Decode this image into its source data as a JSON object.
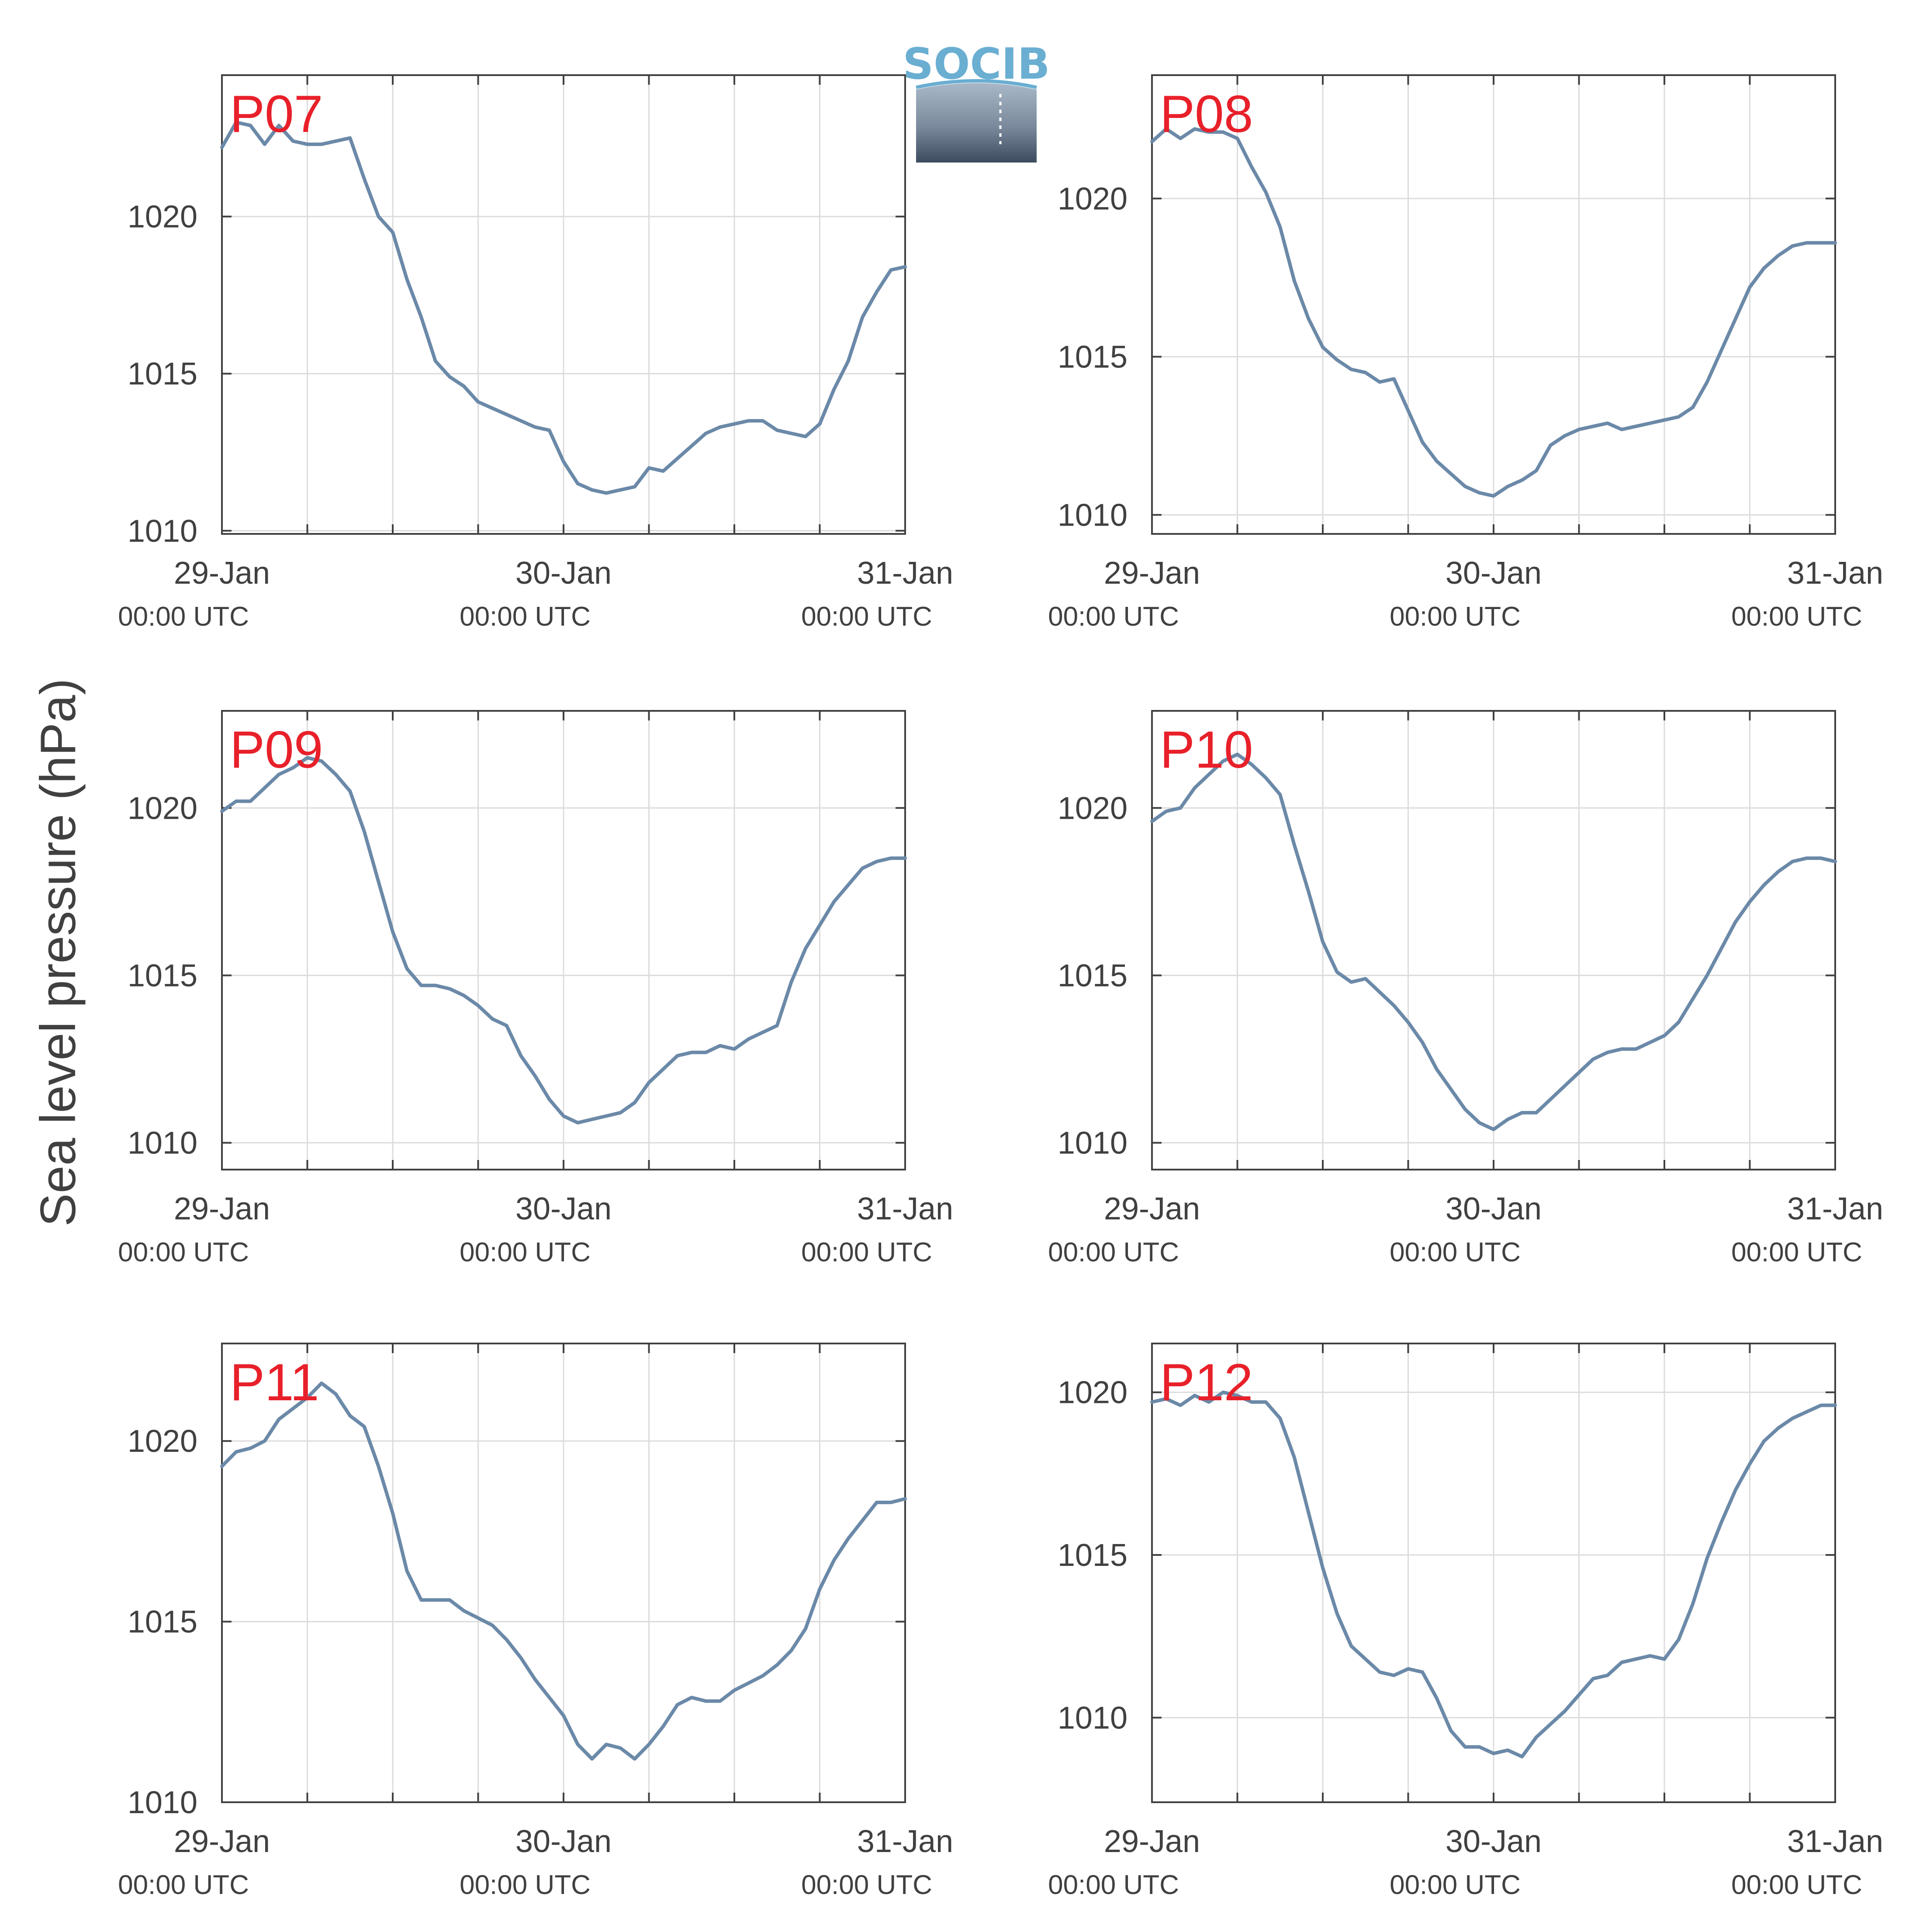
{
  "figure": {
    "ylabel": "Sea level pressure (hPa)",
    "logo_text": "SOCIB",
    "colors": {
      "line": "#6b89a8",
      "station_label": "#e8202a",
      "grid": "#dcdcdc",
      "axis": "#404040",
      "text": "#404040"
    }
  },
  "chart_data": [
    {
      "type": "line",
      "name": "P07",
      "xlabel": "",
      "ylabel": "Sea level pressure (hPa)",
      "x_ticks": [
        {
          "label": "29-Jan",
          "sub": "00:00 UTC",
          "hours": 0
        },
        {
          "label": "30-Jan",
          "sub": "00:00 UTC",
          "hours": 24
        },
        {
          "label": "31-Jan",
          "sub": "00:00 UTC",
          "hours": 48
        }
      ],
      "x_minor_ticks_hours": [
        6,
        12,
        18,
        30,
        36,
        42
      ],
      "xlim_hours": [
        0,
        48
      ],
      "ylim": [
        1009.9,
        1024.5
      ],
      "yticks": [
        1010,
        1015,
        1020
      ],
      "grid": true,
      "x_hours": [
        0,
        1,
        2,
        3,
        4,
        5,
        6,
        7,
        8,
        9,
        10,
        11,
        12,
        13,
        14,
        15,
        16,
        17,
        18,
        19,
        20,
        21,
        22,
        23,
        24,
        25,
        26,
        27,
        28,
        29,
        30,
        31,
        32,
        33,
        34,
        35,
        36,
        37,
        38,
        39,
        40,
        41,
        42,
        43,
        44,
        45,
        46,
        47,
        48
      ],
      "values": [
        1022.2,
        1023.0,
        1022.9,
        1022.3,
        1022.9,
        1022.4,
        1022.3,
        1022.3,
        1022.4,
        1022.5,
        1021.2,
        1020.0,
        1019.5,
        1018.0,
        1016.8,
        1015.4,
        1014.9,
        1014.6,
        1014.1,
        1013.9,
        1013.7,
        1013.5,
        1013.3,
        1013.2,
        1012.2,
        1011.5,
        1011.3,
        1011.2,
        1011.3,
        1011.4,
        1012.0,
        1011.9,
        1012.3,
        1012.7,
        1013.1,
        1013.3,
        1013.4,
        1013.5,
        1013.5,
        1013.2,
        1013.1,
        1013.0,
        1013.4,
        1014.5,
        1015.4,
        1016.8,
        1017.6,
        1018.3,
        1018.4
      ]
    },
    {
      "type": "line",
      "name": "P08",
      "xlabel": "",
      "ylabel": "Sea level pressure (hPa)",
      "x_ticks": [
        {
          "label": "29-Jan",
          "sub": "00:00 UTC",
          "hours": 0
        },
        {
          "label": "30-Jan",
          "sub": "00:00 UTC",
          "hours": 24
        },
        {
          "label": "31-Jan",
          "sub": "00:00 UTC",
          "hours": 48
        }
      ],
      "x_minor_ticks_hours": [
        6,
        12,
        18,
        30,
        36,
        42
      ],
      "xlim_hours": [
        0,
        48
      ],
      "ylim": [
        1009.4,
        1023.9
      ],
      "yticks": [
        1010,
        1015,
        1020
      ],
      "grid": true,
      "x_hours": [
        0,
        1,
        2,
        3,
        4,
        5,
        6,
        7,
        8,
        9,
        10,
        11,
        12,
        13,
        14,
        15,
        16,
        17,
        18,
        19,
        20,
        21,
        22,
        23,
        24,
        25,
        26,
        27,
        28,
        29,
        30,
        31,
        32,
        33,
        34,
        35,
        36,
        37,
        38,
        39,
        40,
        41,
        42,
        43,
        44,
        45,
        46,
        47,
        48
      ],
      "values": [
        1021.8,
        1022.2,
        1021.9,
        1022.2,
        1022.1,
        1022.1,
        1021.9,
        1021.0,
        1020.2,
        1019.1,
        1017.4,
        1016.2,
        1015.3,
        1014.9,
        1014.6,
        1014.5,
        1014.2,
        1014.3,
        1013.3,
        1012.3,
        1011.7,
        1011.3,
        1010.9,
        1010.7,
        1010.6,
        1010.9,
        1011.1,
        1011.4,
        1012.2,
        1012.5,
        1012.7,
        1012.8,
        1012.9,
        1012.7,
        1012.8,
        1012.9,
        1013.0,
        1013.1,
        1013.4,
        1014.2,
        1015.2,
        1016.2,
        1017.2,
        1017.8,
        1018.2,
        1018.5,
        1018.6,
        1018.6,
        1018.6
      ]
    },
    {
      "type": "line",
      "name": "P09",
      "xlabel": "",
      "ylabel": "Sea level pressure (hPa)",
      "x_ticks": [
        {
          "label": "29-Jan",
          "sub": "00:00 UTC",
          "hours": 0
        },
        {
          "label": "30-Jan",
          "sub": "00:00 UTC",
          "hours": 24
        },
        {
          "label": "31-Jan",
          "sub": "00:00 UTC",
          "hours": 48
        }
      ],
      "x_minor_ticks_hours": [
        6,
        12,
        18,
        30,
        36,
        42
      ],
      "xlim_hours": [
        0,
        48
      ],
      "ylim": [
        1009.2,
        1022.9
      ],
      "yticks": [
        1010,
        1015,
        1020
      ],
      "grid": true,
      "x_hours": [
        0,
        1,
        2,
        3,
        4,
        5,
        6,
        7,
        8,
        9,
        10,
        11,
        12,
        13,
        14,
        15,
        16,
        17,
        18,
        19,
        20,
        21,
        22,
        23,
        24,
        25,
        26,
        27,
        28,
        29,
        30,
        31,
        32,
        33,
        34,
        35,
        36,
        37,
        38,
        39,
        40,
        41,
        42,
        43,
        44,
        45,
        46,
        47,
        48
      ],
      "values": [
        1019.9,
        1020.2,
        1020.2,
        1020.6,
        1021.0,
        1021.2,
        1021.5,
        1021.4,
        1021.0,
        1020.5,
        1019.3,
        1017.8,
        1016.3,
        1015.2,
        1014.7,
        1014.7,
        1014.6,
        1014.4,
        1014.1,
        1013.7,
        1013.5,
        1012.6,
        1012.0,
        1011.3,
        1010.8,
        1010.6,
        1010.7,
        1010.8,
        1010.9,
        1011.2,
        1011.8,
        1012.2,
        1012.6,
        1012.7,
        1012.7,
        1012.9,
        1012.8,
        1013.1,
        1013.3,
        1013.5,
        1014.8,
        1015.8,
        1016.5,
        1017.2,
        1017.7,
        1018.2,
        1018.4,
        1018.5,
        1018.5
      ]
    },
    {
      "type": "line",
      "name": "P10",
      "xlabel": "",
      "ylabel": "Sea level pressure (hPa)",
      "x_ticks": [
        {
          "label": "29-Jan",
          "sub": "00:00 UTC",
          "hours": 0
        },
        {
          "label": "30-Jan",
          "sub": "00:00 UTC",
          "hours": 24
        },
        {
          "label": "31-Jan",
          "sub": "00:00 UTC",
          "hours": 48
        }
      ],
      "x_minor_ticks_hours": [
        6,
        12,
        18,
        30,
        36,
        42
      ],
      "xlim_hours": [
        0,
        48
      ],
      "ylim": [
        1009.2,
        1022.9
      ],
      "yticks": [
        1010,
        1015,
        1020
      ],
      "grid": true,
      "x_hours": [
        0,
        1,
        2,
        3,
        4,
        5,
        6,
        7,
        8,
        9,
        10,
        11,
        12,
        13,
        14,
        15,
        16,
        17,
        18,
        19,
        20,
        21,
        22,
        23,
        24,
        25,
        26,
        27,
        28,
        29,
        30,
        31,
        32,
        33,
        34,
        35,
        36,
        37,
        38,
        39,
        40,
        41,
        42,
        43,
        44,
        45,
        46,
        47,
        48
      ],
      "values": [
        1019.6,
        1019.9,
        1020.0,
        1020.6,
        1021.0,
        1021.4,
        1021.6,
        1021.3,
        1020.9,
        1020.4,
        1018.9,
        1017.5,
        1016.0,
        1015.1,
        1014.8,
        1014.9,
        1014.5,
        1014.1,
        1013.6,
        1013.0,
        1012.2,
        1011.6,
        1011.0,
        1010.6,
        1010.4,
        1010.7,
        1010.9,
        1010.9,
        1011.3,
        1011.7,
        1012.1,
        1012.5,
        1012.7,
        1012.8,
        1012.8,
        1013.0,
        1013.2,
        1013.6,
        1014.3,
        1015.0,
        1015.8,
        1016.6,
        1017.2,
        1017.7,
        1018.1,
        1018.4,
        1018.5,
        1018.5,
        1018.4
      ]
    },
    {
      "type": "line",
      "name": "P11",
      "xlabel": "",
      "ylabel": "Sea level pressure (hPa)",
      "x_ticks": [
        {
          "label": "29-Jan",
          "sub": "00:00 UTC",
          "hours": 0
        },
        {
          "label": "30-Jan",
          "sub": "00:00 UTC",
          "hours": 24
        },
        {
          "label": "31-Jan",
          "sub": "00:00 UTC",
          "hours": 48
        }
      ],
      "x_minor_ticks_hours": [
        6,
        12,
        18,
        30,
        36,
        42
      ],
      "xlim_hours": [
        0,
        48
      ],
      "ylim": [
        1010.0,
        1022.7
      ],
      "yticks": [
        1010,
        1015,
        1020
      ],
      "grid": true,
      "x_hours": [
        0,
        1,
        2,
        3,
        4,
        5,
        6,
        7,
        8,
        9,
        10,
        11,
        12,
        13,
        14,
        15,
        16,
        17,
        18,
        19,
        20,
        21,
        22,
        23,
        24,
        25,
        26,
        27,
        28,
        29,
        30,
        31,
        32,
        33,
        34,
        35,
        36,
        37,
        38,
        39,
        40,
        41,
        42,
        43,
        44,
        45,
        46,
        47,
        48
      ],
      "values": [
        1019.3,
        1019.7,
        1019.8,
        1020.0,
        1020.6,
        1020.9,
        1021.2,
        1021.6,
        1021.3,
        1020.7,
        1020.4,
        1019.3,
        1018.0,
        1016.4,
        1015.6,
        1015.6,
        1015.6,
        1015.3,
        1015.1,
        1014.9,
        1014.5,
        1014.0,
        1013.4,
        1012.9,
        1012.4,
        1011.6,
        1011.2,
        1011.6,
        1011.5,
        1011.2,
        1011.6,
        1012.1,
        1012.7,
        1012.9,
        1012.8,
        1012.8,
        1013.1,
        1013.3,
        1013.5,
        1013.8,
        1014.2,
        1014.8,
        1015.9,
        1016.7,
        1017.3,
        1017.8,
        1018.3,
        1018.3,
        1018.4
      ]
    },
    {
      "type": "line",
      "name": "P12",
      "xlabel": "",
      "ylabel": "Sea level pressure (hPa)",
      "x_ticks": [
        {
          "label": "29-Jan",
          "sub": "00:00 UTC",
          "hours": 0
        },
        {
          "label": "30-Jan",
          "sub": "00:00 UTC",
          "hours": 24
        },
        {
          "label": "31-Jan",
          "sub": "00:00 UTC",
          "hours": 48
        }
      ],
      "x_minor_ticks_hours": [
        6,
        12,
        18,
        30,
        36,
        42
      ],
      "xlim_hours": [
        0,
        48
      ],
      "ylim": [
        1007.4,
        1021.5
      ],
      "yticks": [
        1010,
        1015,
        1020
      ],
      "grid": true,
      "x_hours": [
        0,
        1,
        2,
        3,
        4,
        5,
        6,
        7,
        8,
        9,
        10,
        11,
        12,
        13,
        14,
        15,
        16,
        17,
        18,
        19,
        20,
        21,
        22,
        23,
        24,
        25,
        26,
        27,
        28,
        29,
        30,
        31,
        32,
        33,
        34,
        35,
        36,
        37,
        38,
        39,
        40,
        41,
        42,
        43,
        44,
        45,
        46,
        47,
        48
      ],
      "values": [
        1019.7,
        1019.8,
        1019.6,
        1019.9,
        1019.7,
        1020.0,
        1019.9,
        1019.7,
        1019.7,
        1019.2,
        1018.0,
        1016.3,
        1014.6,
        1013.2,
        1012.2,
        1011.8,
        1011.4,
        1011.3,
        1011.5,
        1011.4,
        1010.6,
        1009.6,
        1009.1,
        1009.1,
        1008.9,
        1009.0,
        1008.8,
        1009.4,
        1009.8,
        1010.2,
        1010.7,
        1011.2,
        1011.3,
        1011.7,
        1011.8,
        1011.9,
        1011.8,
        1012.4,
        1013.5,
        1014.9,
        1016.0,
        1017.0,
        1017.8,
        1018.5,
        1018.9,
        1019.2,
        1019.4,
        1019.6,
        1019.6
      ]
    }
  ]
}
